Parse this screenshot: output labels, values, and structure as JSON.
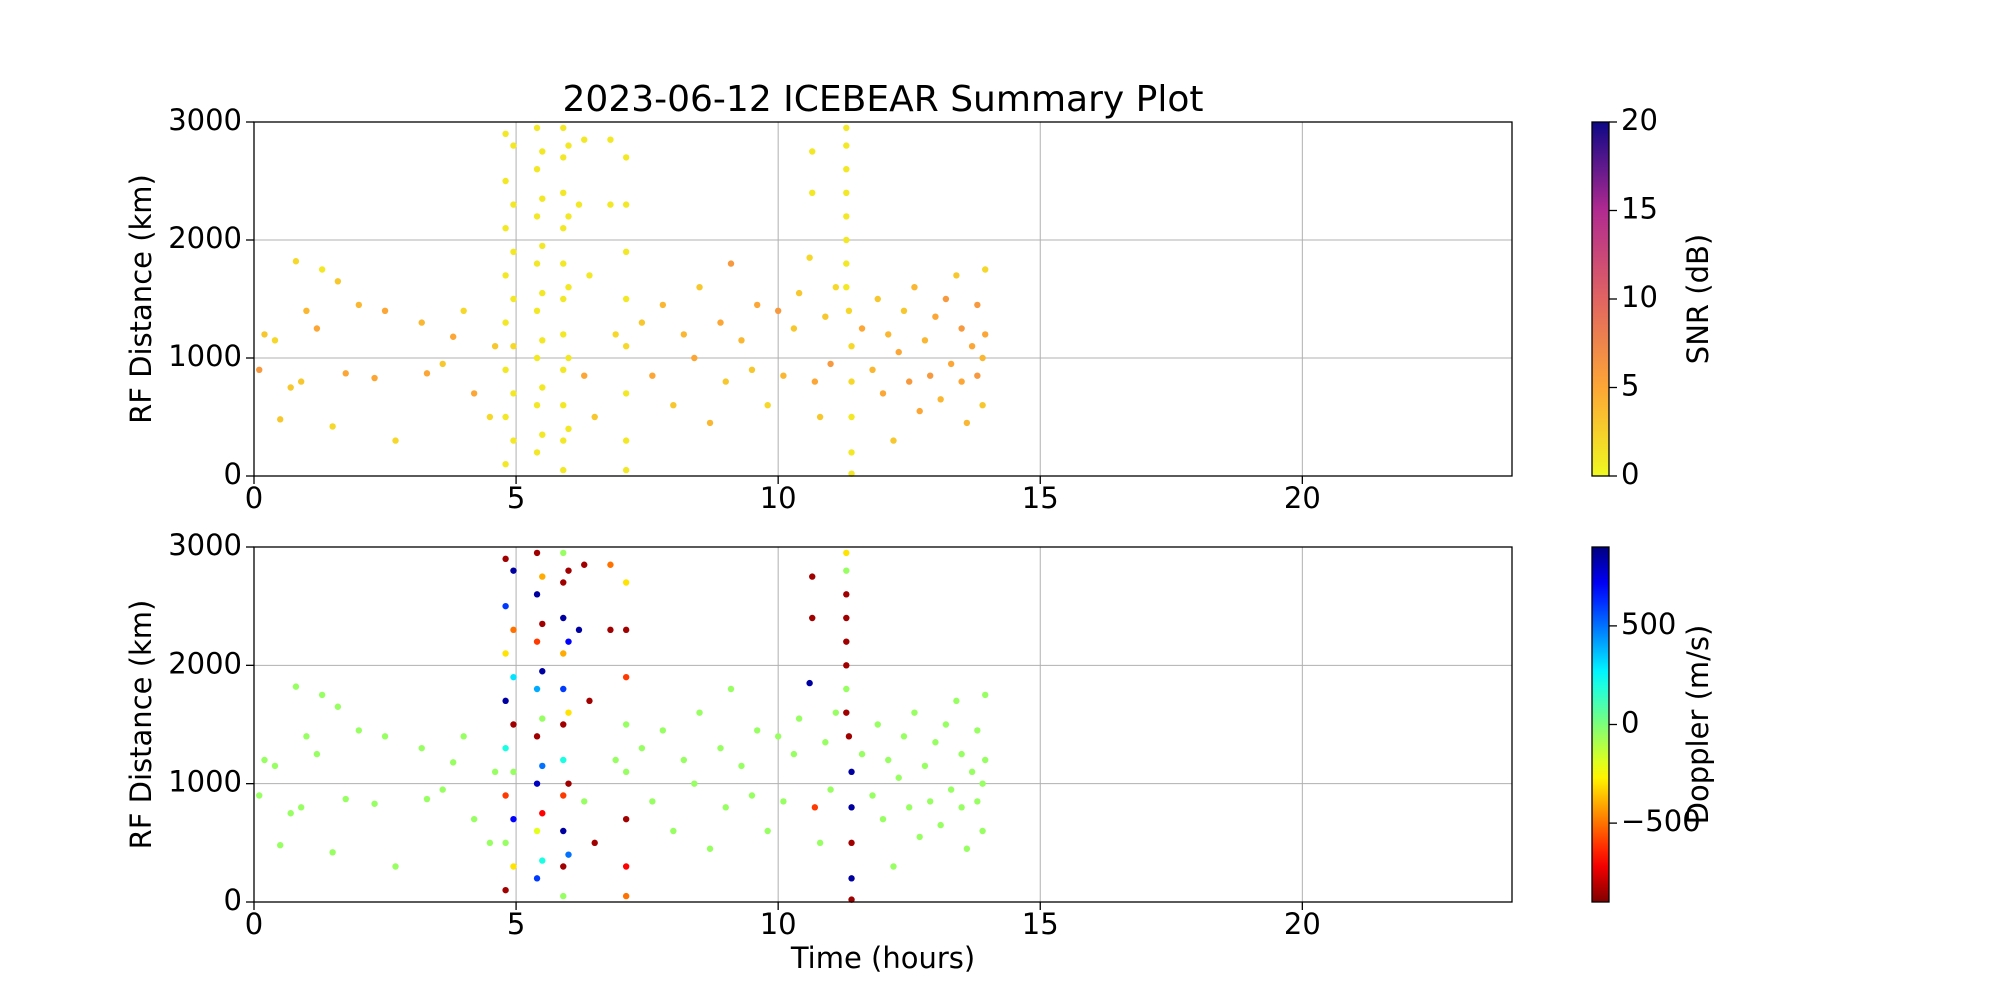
{
  "chart_data": [
    {
      "type": "scatter",
      "title": "2023-06-12 ICEBEAR Summary Plot",
      "ylabel": "RF Distance (km)",
      "xlim": [
        0,
        24
      ],
      "ylim": [
        0,
        3000
      ],
      "xticks": [
        0,
        5,
        10,
        15,
        20
      ],
      "yticks": [
        0,
        1000,
        2000,
        3000
      ],
      "grid": true,
      "colorbar": {
        "label": "SNR (dB)",
        "lim": [
          0,
          20
        ],
        "ticks": [
          0,
          5,
          10,
          15,
          20
        ],
        "colormap": "plasma_r"
      },
      "x": [
        0.1,
        0.2,
        0.4,
        0.5,
        0.7,
        0.8,
        0.9,
        1.0,
        1.2,
        1.3,
        1.5,
        1.6,
        1.75,
        2.0,
        2.3,
        2.5,
        2.7,
        3.2,
        3.3,
        3.6,
        3.8,
        4.0,
        4.2,
        4.5,
        4.6,
        4.8,
        4.8,
        4.8,
        4.8,
        4.8,
        4.8,
        4.8,
        4.8,
        4.95,
        4.95,
        4.95,
        4.95,
        4.95,
        4.95,
        4.95,
        5.4,
        5.4,
        5.4,
        5.4,
        5.4,
        5.4,
        5.4,
        5.4,
        5.5,
        5.5,
        5.5,
        5.5,
        5.5,
        5.5,
        5.5,
        5.9,
        5.9,
        5.9,
        5.9,
        5.9,
        5.9,
        5.9,
        5.9,
        5.9,
        5.9,
        5.9,
        6.0,
        6.0,
        6.0,
        6.0,
        6.0,
        6.3,
        6.2,
        6.4,
        6.3,
        6.5,
        6.8,
        6.8,
        6.9,
        7.1,
        7.1,
        7.1,
        7.1,
        7.1,
        7.1,
        7.1,
        7.1,
        7.4,
        7.6,
        7.8,
        8.0,
        8.2,
        8.4,
        8.5,
        8.7,
        8.9,
        9.0,
        9.1,
        9.3,
        9.5,
        9.6,
        9.8,
        10.0,
        10.1,
        10.3,
        10.4,
        10.65,
        10.65,
        10.6,
        10.7,
        10.8,
        10.9,
        11.0,
        11.1,
        11.3,
        11.3,
        11.3,
        11.3,
        11.3,
        11.3,
        11.3,
        11.3,
        11.35,
        11.4,
        11.4,
        11.4,
        11.4,
        11.4,
        11.6,
        11.8,
        11.9,
        12.0,
        12.1,
        12.2,
        12.3,
        12.4,
        12.5,
        12.6,
        12.7,
        12.8,
        12.9,
        13.0,
        13.1,
        13.2,
        13.3,
        13.4,
        13.5,
        13.5,
        13.6,
        13.7,
        13.8,
        13.8,
        13.9,
        13.9,
        13.95,
        13.95
      ],
      "y": [
        900,
        1200,
        1150,
        480,
        750,
        1820,
        800,
        1400,
        1250,
        1750,
        420,
        1650,
        870,
        1450,
        830,
        1400,
        300,
        1300,
        870,
        950,
        1180,
        1400,
        700,
        500,
        1100,
        2900,
        2500,
        2100,
        1700,
        1300,
        900,
        500,
        100,
        2800,
        2300,
        1900,
        1500,
        1100,
        700,
        300,
        2950,
        2600,
        2200,
        1800,
        1400,
        1000,
        600,
        200,
        2750,
        2350,
        1950,
        1550,
        1150,
        750,
        350,
        2950,
        2700,
        2400,
        2100,
        1800,
        1500,
        1200,
        900,
        600,
        300,
        50,
        2800,
        2200,
        1600,
        1000,
        400,
        2850,
        2300,
        1700,
        850,
        500,
        2850,
        2300,
        1200,
        2700,
        2300,
        1900,
        1500,
        1100,
        700,
        300,
        50,
        1300,
        850,
        1450,
        600,
        1200,
        1000,
        1600,
        450,
        1300,
        800,
        1800,
        1150,
        900,
        1450,
        600,
        1400,
        850,
        1250,
        1550,
        2750,
        2400,
        1850,
        800,
        500,
        1350,
        950,
        1600,
        2950,
        2800,
        2600,
        2400,
        2200,
        2000,
        1800,
        1600,
        1400,
        1100,
        800,
        500,
        200,
        20,
        1250,
        900,
        1500,
        700,
        1200,
        300,
        1050,
        1400,
        800,
        1600,
        550,
        1150,
        850,
        1350,
        650,
        1500,
        950,
        1700,
        800,
        1250,
        450,
        1100,
        1450,
        850,
        1000,
        600,
        1750,
        1200
      ],
      "color_values": [
        6,
        3,
        2,
        3,
        3,
        2,
        3,
        4,
        5,
        1,
        2,
        3,
        5,
        4,
        5,
        5,
        2,
        4,
        5,
        3,
        5,
        2,
        5,
        2,
        3,
        1,
        1,
        1,
        1,
        1,
        1,
        1,
        1,
        1,
        1,
        1,
        1,
        2,
        1,
        1,
        1,
        1,
        1,
        1,
        1,
        1,
        1,
        1,
        1,
        1,
        1,
        1,
        1,
        1,
        1,
        1,
        1,
        1,
        1,
        1,
        1,
        1,
        1,
        1,
        1,
        1,
        1,
        1,
        1,
        1,
        1,
        1,
        1,
        1,
        5,
        3,
        1,
        1,
        2,
        1,
        1,
        1,
        1,
        2,
        1,
        1,
        1,
        3,
        5,
        4,
        3,
        4,
        5,
        3,
        4,
        5,
        3,
        6,
        4,
        3,
        5,
        2,
        6,
        4,
        3,
        3,
        1,
        1,
        2,
        5,
        3,
        3,
        6,
        2,
        1,
        1,
        1,
        1,
        1,
        1,
        1,
        1,
        2,
        2,
        2,
        1,
        1,
        1,
        5,
        4,
        3,
        5,
        4,
        3,
        5,
        3,
        6,
        4,
        5,
        4,
        6,
        5,
        4,
        6,
        5,
        3,
        5,
        6,
        4,
        5,
        6,
        6,
        4,
        3,
        2,
        5
      ]
    },
    {
      "type": "scatter",
      "ylabel": "RF Distance (km)",
      "xlabel": "Time (hours)",
      "xlim": [
        0,
        24
      ],
      "ylim": [
        0,
        3000
      ],
      "xticks": [
        0,
        5,
        10,
        15,
        20
      ],
      "yticks": [
        0,
        1000,
        2000,
        3000
      ],
      "grid": true,
      "colorbar": {
        "label": "Doppler (m/s)",
        "lim": [
          -900,
          900
        ],
        "ticks": [
          {
            "value": -500,
            "label": "−500"
          },
          0,
          500
        ],
        "colormap": "jet_r"
      },
      "x": [
        0.1,
        0.2,
        0.4,
        0.5,
        0.7,
        0.8,
        0.9,
        1.0,
        1.2,
        1.3,
        1.5,
        1.6,
        1.75,
        2.0,
        2.3,
        2.5,
        2.7,
        3.2,
        3.3,
        3.6,
        3.8,
        4.0,
        4.2,
        4.5,
        4.6,
        4.8,
        4.8,
        4.8,
        4.8,
        4.8,
        4.8,
        4.8,
        4.8,
        4.95,
        4.95,
        4.95,
        4.95,
        4.95,
        4.95,
        4.95,
        5.4,
        5.4,
        5.4,
        5.4,
        5.4,
        5.4,
        5.4,
        5.4,
        5.5,
        5.5,
        5.5,
        5.5,
        5.5,
        5.5,
        5.5,
        5.9,
        5.9,
        5.9,
        5.9,
        5.9,
        5.9,
        5.9,
        5.9,
        5.9,
        5.9,
        5.9,
        6.0,
        6.0,
        6.0,
        6.0,
        6.0,
        6.3,
        6.2,
        6.4,
        6.3,
        6.5,
        6.8,
        6.8,
        6.9,
        7.1,
        7.1,
        7.1,
        7.1,
        7.1,
        7.1,
        7.1,
        7.1,
        7.4,
        7.6,
        7.8,
        8.0,
        8.2,
        8.4,
        8.5,
        8.7,
        8.9,
        9.0,
        9.1,
        9.3,
        9.5,
        9.6,
        9.8,
        10.0,
        10.1,
        10.3,
        10.4,
        10.65,
        10.65,
        10.6,
        10.7,
        10.8,
        10.9,
        11.0,
        11.1,
        11.3,
        11.3,
        11.3,
        11.3,
        11.3,
        11.3,
        11.3,
        11.3,
        11.35,
        11.4,
        11.4,
        11.4,
        11.4,
        11.4,
        11.6,
        11.8,
        11.9,
        12.0,
        12.1,
        12.2,
        12.3,
        12.4,
        12.5,
        12.6,
        12.7,
        12.8,
        12.9,
        13.0,
        13.1,
        13.2,
        13.3,
        13.4,
        13.5,
        13.5,
        13.6,
        13.7,
        13.8,
        13.8,
        13.9,
        13.9,
        13.95,
        13.95
      ],
      "y": [
        900,
        1200,
        1150,
        480,
        750,
        1820,
        800,
        1400,
        1250,
        1750,
        420,
        1650,
        870,
        1450,
        830,
        1400,
        300,
        1300,
        870,
        950,
        1180,
        1400,
        700,
        500,
        1100,
        2900,
        2500,
        2100,
        1700,
        1300,
        900,
        500,
        100,
        2800,
        2300,
        1900,
        1500,
        1100,
        700,
        300,
        2950,
        2600,
        2200,
        1800,
        1400,
        1000,
        600,
        200,
        2750,
        2350,
        1950,
        1550,
        1150,
        750,
        350,
        2950,
        2700,
        2400,
        2100,
        1800,
        1500,
        1200,
        900,
        600,
        300,
        50,
        2800,
        2200,
        1600,
        1000,
        400,
        2850,
        2300,
        1700,
        850,
        500,
        2850,
        2300,
        1200,
        2700,
        2300,
        1900,
        1500,
        1100,
        700,
        300,
        50,
        1300,
        850,
        1450,
        600,
        1200,
        1000,
        1600,
        450,
        1300,
        800,
        1800,
        1150,
        900,
        1450,
        600,
        1400,
        850,
        1250,
        1550,
        2750,
        2400,
        1850,
        800,
        500,
        1350,
        950,
        1600,
        2950,
        2800,
        2600,
        2400,
        2200,
        2000,
        1800,
        1600,
        1400,
        1100,
        800,
        500,
        200,
        20,
        1250,
        900,
        1500,
        700,
        1200,
        300,
        1050,
        1400,
        800,
        1600,
        550,
        1150,
        850,
        1350,
        650,
        1500,
        950,
        1700,
        800,
        1250,
        450,
        1100,
        1450,
        850,
        1000,
        600,
        1750,
        1200
      ],
      "color_values": [
        -50,
        -50,
        -50,
        -50,
        -50,
        -50,
        -50,
        -50,
        -50,
        -50,
        -50,
        -50,
        -50,
        -50,
        -50,
        -50,
        -50,
        -50,
        -50,
        -50,
        -50,
        -50,
        -50,
        -50,
        -50,
        -850,
        600,
        -300,
        850,
        200,
        -600,
        -50,
        -850,
        850,
        -500,
        300,
        -850,
        -50,
        700,
        -300,
        -850,
        850,
        -600,
        400,
        -850,
        800,
        -200,
        600,
        -400,
        -850,
        850,
        -50,
        500,
        -700,
        200,
        -50,
        -850,
        850,
        -400,
        600,
        -850,
        200,
        -600,
        850,
        -850,
        -50,
        -850,
        700,
        -300,
        -850,
        500,
        -850,
        850,
        -850,
        -50,
        -850,
        -500,
        -850,
        -50,
        -300,
        -850,
        -600,
        -50,
        -50,
        -850,
        -700,
        -500,
        -50,
        -50,
        -50,
        -50,
        -50,
        -50,
        -50,
        -50,
        -50,
        -50,
        -50,
        -50,
        -50,
        -50,
        -50,
        -50,
        -50,
        -50,
        -50,
        -850,
        -850,
        850,
        -600,
        -50,
        -50,
        -50,
        -50,
        -300,
        -50,
        -850,
        -850,
        -850,
        -850,
        -50,
        -850,
        -850,
        850,
        850,
        -850,
        850,
        -850,
        -50,
        -50,
        -50,
        -50,
        -50,
        -50,
        -50,
        -50,
        -50,
        -50,
        -50,
        -50,
        -50,
        -50,
        -50,
        -50,
        -50,
        -50,
        -50,
        -50,
        -50,
        -50,
        -50,
        -50,
        -50,
        -50,
        -50,
        -50
      ]
    }
  ]
}
